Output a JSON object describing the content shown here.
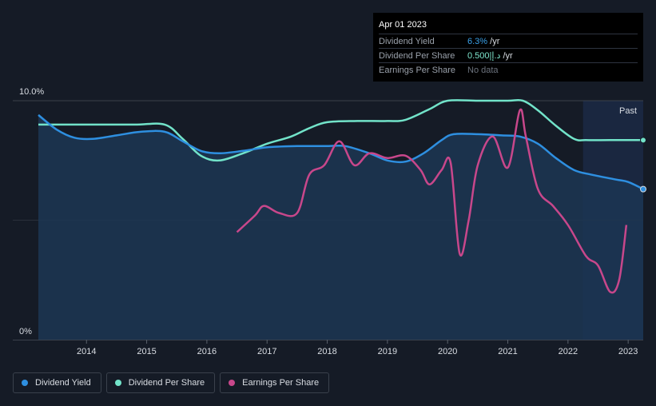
{
  "tooltip": {
    "date": "Apr 01 2023",
    "rows": [
      {
        "label": "Dividend Yield",
        "value": "6.3%",
        "suffix": " /yr"
      },
      {
        "label": "Dividend Per Share",
        "value": "0.500|د.إ",
        "suffix": " /yr"
      },
      {
        "label": "Earnings Per Share",
        "value": "No data",
        "suffix": ""
      }
    ]
  },
  "past_label": "Past",
  "legend": [
    {
      "label": "Dividend Yield",
      "color": "#2e8fe0"
    },
    {
      "label": "Dividend Per Share",
      "color": "#72e3c9"
    },
    {
      "label": "Earnings Per Share",
      "color": "#c8478b"
    }
  ],
  "colors": {
    "background": "#151b26",
    "dividend_yield": "#2e8fe0",
    "dividend_per_share": "#72e3c9",
    "earnings_per_share": "#c8478b",
    "area_fill": "#1c3654"
  },
  "chart_data": {
    "type": "line",
    "y_tick_labels": [
      "10.0%",
      "0%"
    ],
    "ylim": [
      0,
      10
    ],
    "xlim": [
      2013.2,
      2023.25
    ],
    "x_ticks": [
      2014,
      2015,
      2016,
      2017,
      2018,
      2019,
      2020,
      2021,
      2022,
      2023
    ],
    "x_tick_labels": [
      "2014",
      "2015",
      "2016",
      "2017",
      "2018",
      "2019",
      "2020",
      "2021",
      "2022",
      "2023"
    ],
    "forecast_start": 2022.25,
    "grid": true,
    "legend_position": "bottom-left",
    "series": [
      {
        "name": "Dividend Yield",
        "unit": "percent",
        "points": [
          [
            2013.2,
            9.4
          ],
          [
            2013.5,
            8.8
          ],
          [
            2013.8,
            8.45
          ],
          [
            2014.1,
            8.4
          ],
          [
            2014.5,
            8.55
          ],
          [
            2014.9,
            8.7
          ],
          [
            2015.3,
            8.7
          ],
          [
            2015.6,
            8.3
          ],
          [
            2015.9,
            7.9
          ],
          [
            2016.2,
            7.8
          ],
          [
            2016.6,
            7.9
          ],
          [
            2017.0,
            8.05
          ],
          [
            2017.5,
            8.1
          ],
          [
            2018.0,
            8.1
          ],
          [
            2018.3,
            8.1
          ],
          [
            2018.7,
            7.8
          ],
          [
            2019.0,
            7.5
          ],
          [
            2019.3,
            7.45
          ],
          [
            2019.6,
            7.8
          ],
          [
            2019.9,
            8.35
          ],
          [
            2020.1,
            8.6
          ],
          [
            2020.5,
            8.6
          ],
          [
            2020.9,
            8.55
          ],
          [
            2021.2,
            8.5
          ],
          [
            2021.5,
            8.2
          ],
          [
            2021.8,
            7.6
          ],
          [
            2022.1,
            7.1
          ],
          [
            2022.4,
            6.9
          ],
          [
            2022.8,
            6.7
          ],
          [
            2023.0,
            6.6
          ],
          [
            2023.25,
            6.3
          ]
        ]
      },
      {
        "name": "Dividend Per Share",
        "unit": "indexed",
        "points": [
          [
            2013.2,
            9.0
          ],
          [
            2014.0,
            9.0
          ],
          [
            2014.8,
            9.0
          ],
          [
            2015.3,
            9.0
          ],
          [
            2015.6,
            8.4
          ],
          [
            2015.9,
            7.7
          ],
          [
            2016.2,
            7.5
          ],
          [
            2016.6,
            7.8
          ],
          [
            2017.0,
            8.2
          ],
          [
            2017.4,
            8.5
          ],
          [
            2017.7,
            8.85
          ],
          [
            2018.0,
            9.1
          ],
          [
            2018.5,
            9.15
          ],
          [
            2019.0,
            9.15
          ],
          [
            2019.3,
            9.2
          ],
          [
            2019.7,
            9.65
          ],
          [
            2020.0,
            10.0
          ],
          [
            2020.5,
            10.0
          ],
          [
            2021.0,
            10.0
          ],
          [
            2021.25,
            10.0
          ],
          [
            2021.5,
            9.6
          ],
          [
            2021.8,
            8.95
          ],
          [
            2022.1,
            8.4
          ],
          [
            2022.3,
            8.35
          ],
          [
            2022.7,
            8.35
          ],
          [
            2023.25,
            8.35
          ]
        ]
      },
      {
        "name": "Earnings Per Share",
        "unit": "indexed",
        "points": [
          [
            2016.5,
            4.5
          ],
          [
            2016.8,
            5.2
          ],
          [
            2016.95,
            5.6
          ],
          [
            2017.2,
            5.3
          ],
          [
            2017.5,
            5.3
          ],
          [
            2017.7,
            6.9
          ],
          [
            2017.95,
            7.3
          ],
          [
            2018.2,
            8.3
          ],
          [
            2018.45,
            7.3
          ],
          [
            2018.7,
            7.8
          ],
          [
            2019.0,
            7.6
          ],
          [
            2019.3,
            7.7
          ],
          [
            2019.55,
            7.1
          ],
          [
            2019.7,
            6.5
          ],
          [
            2019.9,
            7.1
          ],
          [
            2020.05,
            7.4
          ],
          [
            2020.2,
            3.6
          ],
          [
            2020.35,
            5.0
          ],
          [
            2020.5,
            7.3
          ],
          [
            2020.75,
            8.5
          ],
          [
            2021.0,
            7.2
          ],
          [
            2021.2,
            9.6
          ],
          [
            2021.3,
            8.5
          ],
          [
            2021.5,
            6.3
          ],
          [
            2021.75,
            5.6
          ],
          [
            2022.0,
            4.8
          ],
          [
            2022.3,
            3.5
          ],
          [
            2022.5,
            3.1
          ],
          [
            2022.7,
            2.0
          ],
          [
            2022.85,
            2.5
          ],
          [
            2022.97,
            4.8
          ]
        ]
      }
    ]
  }
}
